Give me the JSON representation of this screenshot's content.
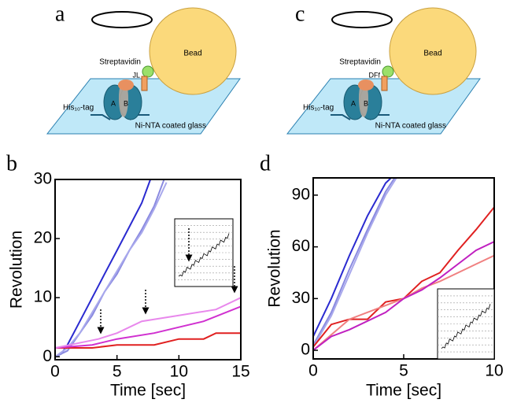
{
  "diagrams": [
    {
      "label": "a",
      "bead": "Bead",
      "streptavidin": "Streptavidin",
      "linker": "JL",
      "subunit_a": "A",
      "subunit_b": "B",
      "tag": "His₁₀-tag",
      "glass": "Ni-NTA coated glass"
    },
    {
      "label": "c",
      "bead": "Bead",
      "streptavidin": "Streptavidin",
      "linker": "DFf",
      "subunit_a": "A",
      "subunit_b": "B",
      "tag": "His₁₀-tag",
      "glass": "Ni-NTA coated glass"
    }
  ],
  "chart_data": [
    {
      "type": "line",
      "panel_label": "b",
      "x_label": "Time [sec]",
      "y_label": "Revolution",
      "xlim": [
        0,
        15
      ],
      "xticks": [
        0,
        5,
        10,
        15
      ],
      "ylim": [
        -0.5,
        30
      ],
      "yticks": [
        0,
        10,
        20,
        30
      ],
      "series": [
        {
          "color": "#2a2ad0",
          "x": [
            0,
            0.5,
            1,
            2,
            3,
            4,
            5,
            6,
            7,
            7.7
          ],
          "values": [
            0,
            0.5,
            2,
            6,
            10,
            14,
            18,
            22,
            26,
            30
          ]
        },
        {
          "color": "#8a8ae0",
          "x": [
            0,
            1,
            2,
            3,
            4,
            5,
            6,
            7,
            8,
            8.8
          ],
          "values": [
            0,
            1,
            4,
            7,
            11,
            14,
            18,
            21.5,
            25.5,
            30
          ]
        },
        {
          "color": "#a8a8ec",
          "x": [
            0,
            1,
            2,
            3,
            4,
            5,
            6,
            7,
            8,
            9
          ],
          "values": [
            0,
            1.5,
            4,
            7.5,
            11,
            14.5,
            18,
            21,
            25,
            29.5
          ]
        },
        {
          "color": "#e02020",
          "x": [
            0,
            3,
            5,
            8,
            10,
            12,
            13,
            15
          ],
          "values": [
            1.5,
            1.5,
            2,
            2,
            3,
            3,
            4,
            4
          ]
        },
        {
          "color": "#d030d0",
          "x": [
            0,
            3,
            5,
            8,
            10,
            12,
            15
          ],
          "values": [
            1.5,
            2,
            3,
            4,
            5,
            6,
            8.5
          ]
        },
        {
          "color": "#e888ec",
          "x": [
            0,
            3.5,
            5,
            7,
            10,
            13,
            15
          ],
          "values": [
            1.5,
            3,
            4,
            6,
            7,
            8,
            10
          ]
        }
      ]
    },
    {
      "type": "line",
      "panel_label": "d",
      "x_label": "Time [sec]",
      "y_label": "Revolution",
      "xlim": [
        0,
        10
      ],
      "xticks": [
        0,
        5,
        10
      ],
      "ylim": [
        -5,
        100
      ],
      "yticks": [
        0,
        30,
        60,
        90
      ],
      "series": [
        {
          "color": "#2a2ad0",
          "x": [
            0,
            1,
            2,
            3,
            4,
            4.3
          ],
          "values": [
            8,
            30,
            55,
            78,
            97,
            100
          ]
        },
        {
          "color": "#8a8ae0",
          "x": [
            0,
            1,
            2,
            3,
            4,
            4.5
          ],
          "values": [
            3,
            22,
            47,
            70,
            92,
            100
          ]
        },
        {
          "color": "#a8a8ec",
          "x": [
            0,
            1,
            2,
            3,
            4,
            4.6
          ],
          "values": [
            2,
            20,
            44,
            68,
            90,
            100
          ]
        },
        {
          "color": "#e02020",
          "x": [
            0,
            1,
            2,
            3,
            4,
            5,
            6,
            7,
            8,
            9,
            10
          ],
          "values": [
            2,
            15,
            18,
            18,
            28,
            30,
            40,
            45,
            58,
            70,
            83
          ]
        },
        {
          "color": "#f08080",
          "x": [
            0,
            2,
            4,
            5,
            6,
            7,
            8,
            9,
            10
          ],
          "values": [
            0,
            18,
            26,
            30,
            36,
            40,
            45,
            50,
            55
          ]
        },
        {
          "color": "#c020c0",
          "x": [
            0,
            1,
            2,
            4,
            5,
            6,
            7,
            8,
            9,
            10
          ],
          "values": [
            0,
            8,
            12,
            22,
            30,
            35,
            42,
            50,
            58,
            63
          ]
        }
      ]
    }
  ]
}
